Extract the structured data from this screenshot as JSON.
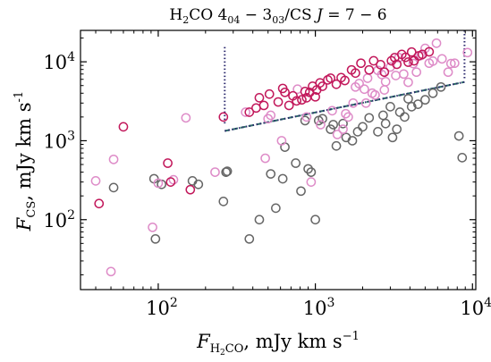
{
  "chart_data": {
    "type": "scatter",
    "title": "H₂CO 4₀₄ − 3₀₃/CS J = 7 − 6",
    "title_parts": {
      "species1": "H",
      "species1_sub": "2",
      "species1_rest": "CO ",
      "line1_a": "4",
      "line1_a_sub": "04",
      "line1_mid": " − 3",
      "line1_b_sub": "03",
      "sep": "/CS ",
      "jvar": "J",
      "jval": " = 7 − 6"
    },
    "xlabel": "F_H2CO, mJy km s^-1",
    "xlabel_parts": {
      "var": "F",
      "sub": "H",
      "sub2": "2",
      "sub3": "CO",
      "rest": ", mJy km s",
      "sup": "−1"
    },
    "ylabel": "F_CS, mJy km s^-1",
    "ylabel_parts": {
      "var": "F",
      "sub": "CS",
      "rest": ", mJy km s",
      "sup": "-1"
    },
    "xscale": "log",
    "yscale": "log",
    "xlim": [
      32,
      10500
    ],
    "ylim": [
      13,
      25000
    ],
    "x_ticks": [
      {
        "value": 100,
        "base": "10",
        "exp": "2"
      },
      {
        "value": 1000,
        "base": "10",
        "exp": "3"
      },
      {
        "value": 10000,
        "base": "10",
        "exp": "4"
      }
    ],
    "y_ticks": [
      {
        "value": 100,
        "base": "10",
        "exp": "2"
      },
      {
        "value": 1000,
        "base": "10",
        "exp": "3"
      },
      {
        "value": 10000,
        "base": "10",
        "exp": "4"
      }
    ],
    "grid": false,
    "legend": "none",
    "colors": {
      "crimson": "#c2185b",
      "pink": "#de8cc8",
      "gray": "#666666",
      "frame": "#000000",
      "dotted": "#2c2a6e",
      "dashed": "#2b6e66"
    },
    "lines": [
      {
        "style": "dotted",
        "points": [
          [
            265,
            15400
          ],
          [
            265,
            1600
          ]
        ]
      },
      {
        "style": "dotted",
        "points": [
          [
            8900,
            25000
          ],
          [
            8900,
            5800
          ]
        ]
      },
      {
        "style": "dotted-dashed",
        "points": [
          [
            265,
            1330
          ],
          [
            8900,
            5550
          ]
        ]
      }
    ],
    "series": [
      {
        "color": "crimson",
        "points": [
          [
            42,
            160
          ],
          [
            60,
            1500
          ],
          [
            115,
            520
          ],
          [
            120,
            300
          ],
          [
            160,
            240
          ],
          [
            260,
            2000
          ],
          [
            380,
            2300
          ],
          [
            420,
            2600
          ],
          [
            440,
            3500
          ],
          [
            470,
            2800
          ],
          [
            510,
            3900
          ],
          [
            580,
            3100
          ],
          [
            620,
            4600
          ],
          [
            640,
            4100
          ],
          [
            680,
            2800
          ],
          [
            720,
            3700
          ],
          [
            760,
            3200
          ],
          [
            820,
            3300
          ],
          [
            860,
            4200
          ],
          [
            880,
            3500
          ],
          [
            920,
            4100
          ],
          [
            960,
            4900
          ],
          [
            1000,
            3600
          ],
          [
            1020,
            4400
          ],
          [
            1070,
            5400
          ],
          [
            1110,
            4900
          ],
          [
            1200,
            5900
          ],
          [
            1250,
            6200
          ],
          [
            1360,
            5200
          ],
          [
            1460,
            6300
          ],
          [
            1540,
            5800
          ],
          [
            1700,
            7900
          ],
          [
            1800,
            7200
          ],
          [
            1950,
            9600
          ],
          [
            2200,
            7900
          ],
          [
            2350,
            10300
          ],
          [
            2600,
            9200
          ],
          [
            2750,
            7400
          ],
          [
            3050,
            10300
          ],
          [
            3200,
            11300
          ],
          [
            3300,
            9300
          ],
          [
            3550,
            12400
          ],
          [
            3750,
            11400
          ],
          [
            3900,
            9900
          ],
          [
            4100,
            13300
          ],
          [
            4250,
            10300
          ],
          [
            4550,
            11900
          ],
          [
            4800,
            12400
          ],
          [
            5300,
            13400
          ]
        ]
      },
      {
        "color": "pink",
        "points": [
          [
            40,
            310
          ],
          [
            52,
            580
          ],
          [
            50,
            22
          ],
          [
            92,
            80
          ],
          [
            100,
            290
          ],
          [
            125,
            320
          ],
          [
            150,
            1950
          ],
          [
            230,
            400
          ],
          [
            360,
            2300
          ],
          [
            480,
            600
          ],
          [
            500,
            1900
          ],
          [
            520,
            2100
          ],
          [
            610,
            1000
          ],
          [
            770,
            4500
          ],
          [
            880,
            2000
          ],
          [
            940,
            300
          ],
          [
            1080,
            1600
          ],
          [
            1280,
            2400
          ],
          [
            1380,
            1200
          ],
          [
            1500,
            1400
          ],
          [
            1560,
            2200
          ],
          [
            1620,
            2000
          ],
          [
            1740,
            3000
          ],
          [
            1800,
            4800
          ],
          [
            1900,
            5300
          ],
          [
            2050,
            4500
          ],
          [
            2100,
            3000
          ],
          [
            2150,
            6200
          ],
          [
            2300,
            4000
          ],
          [
            2400,
            3800
          ],
          [
            2500,
            7800
          ],
          [
            2650,
            6900
          ],
          [
            2750,
            4400
          ],
          [
            2800,
            5600
          ],
          [
            3000,
            8600
          ],
          [
            3250,
            6700
          ],
          [
            3400,
            11300
          ],
          [
            3650,
            7000
          ],
          [
            3900,
            5500
          ],
          [
            4200,
            9500
          ],
          [
            4400,
            7400
          ],
          [
            4700,
            12000
          ],
          [
            5000,
            14800
          ],
          [
            5300,
            9600
          ],
          [
            5600,
            10200
          ],
          [
            5900,
            17200
          ],
          [
            6400,
            10900
          ],
          [
            7000,
            7400
          ],
          [
            7300,
            9500
          ],
          [
            7700,
            9600
          ],
          [
            9300,
            13100
          ]
        ]
      },
      {
        "color": "gray",
        "points": [
          [
            52,
            255
          ],
          [
            94,
            330
          ],
          [
            96,
            57
          ],
          [
            105,
            280
          ],
          [
            165,
            310
          ],
          [
            180,
            280
          ],
          [
            270,
            400
          ],
          [
            275,
            410
          ],
          [
            260,
            170
          ],
          [
            380,
            57
          ],
          [
            440,
            100
          ],
          [
            520,
            380
          ],
          [
            560,
            140
          ],
          [
            620,
            330
          ],
          [
            640,
            830
          ],
          [
            750,
            520
          ],
          [
            810,
            230
          ],
          [
            860,
            1800
          ],
          [
            900,
            440
          ],
          [
            940,
            400
          ],
          [
            1000,
            100
          ],
          [
            1050,
            1800
          ],
          [
            1110,
            1900
          ],
          [
            1250,
            1400
          ],
          [
            1300,
            1600
          ],
          [
            1360,
            860
          ],
          [
            1500,
            1650
          ],
          [
            1570,
            1100
          ],
          [
            1720,
            1000
          ],
          [
            1860,
            1300
          ],
          [
            2000,
            1500
          ],
          [
            2200,
            1950
          ],
          [
            2500,
            1300
          ],
          [
            2700,
            2100
          ],
          [
            2800,
            1650
          ],
          [
            3000,
            2700
          ],
          [
            3100,
            1100
          ],
          [
            3300,
            1400
          ],
          [
            3450,
            2300
          ],
          [
            3700,
            2000
          ],
          [
            3900,
            3400
          ],
          [
            4100,
            2700
          ],
          [
            4500,
            2900
          ],
          [
            5000,
            3300
          ],
          [
            5600,
            4000
          ],
          [
            6300,
            4800
          ],
          [
            8200,
            1150
          ],
          [
            8600,
            610
          ]
        ]
      }
    ]
  }
}
